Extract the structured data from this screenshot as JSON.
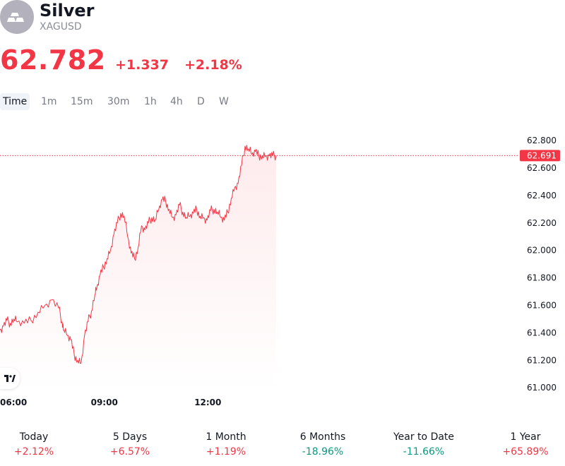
{
  "header": {
    "title": "Silver",
    "symbol": "XAGUSD"
  },
  "quote": {
    "price": "62.782",
    "change": "+1.337",
    "change_pct": "+2.18%"
  },
  "intervals": [
    "Time",
    "1m",
    "15m",
    "30m",
    "1h",
    "4h",
    "D",
    "W"
  ],
  "active_interval": "Time",
  "colors": {
    "up": "#f23645",
    "down": "#089981",
    "text": "#131722",
    "muted": "#787b86"
  },
  "chart_data": {
    "type": "area",
    "y_axis": {
      "ticks": [
        61.0,
        61.2,
        61.4,
        61.6,
        61.8,
        62.0,
        62.2,
        62.4,
        62.6,
        62.8
      ],
      "tick_labels": [
        "61.000",
        "61.200",
        "61.400",
        "61.600",
        "61.800",
        "62.000",
        "62.200",
        "62.400",
        "62.600",
        "62.800"
      ],
      "ylim": [
        60.97,
        62.95
      ]
    },
    "x_axis": {
      "tick_labels": [
        "06:00",
        "09:00",
        "12:00"
      ],
      "tick_times": [
        6.0,
        9.0,
        12.0
      ],
      "xlim": [
        6.0,
        21.0
      ]
    },
    "last_price_label": "62.691",
    "last_price": 62.691,
    "series": [
      {
        "color": "#f23645",
        "x": [
          6.0,
          6.1,
          6.2,
          6.3,
          6.4,
          6.5,
          6.7,
          6.9,
          7.1,
          7.3,
          7.5,
          7.7,
          7.8,
          7.85,
          7.95,
          8.05,
          8.15,
          8.25,
          8.35,
          8.45,
          8.55,
          8.65,
          8.75,
          8.8,
          8.9,
          9.0,
          9.1,
          9.2,
          9.3,
          9.4,
          9.5,
          9.6,
          9.7,
          9.8,
          9.9,
          10.0,
          10.1,
          10.2,
          10.3,
          10.4,
          10.5,
          10.6,
          10.7,
          10.8,
          10.9,
          11.0,
          11.1,
          11.2,
          11.3,
          11.4,
          11.5,
          11.6,
          11.7,
          11.8,
          11.9,
          12.0,
          12.1,
          12.2,
          12.3,
          12.4,
          12.5,
          12.6,
          12.7,
          12.8,
          12.9,
          13.0,
          13.1,
          13.2,
          13.3,
          13.4,
          13.5,
          13.6,
          13.7,
          13.8,
          13.9,
          14.0
        ],
        "values": [
          61.42,
          61.45,
          61.49,
          61.47,
          61.5,
          61.48,
          61.47,
          61.49,
          61.55,
          61.6,
          61.64,
          61.58,
          61.48,
          61.42,
          61.38,
          61.35,
          61.24,
          61.2,
          61.18,
          61.38,
          61.48,
          61.56,
          61.68,
          61.72,
          61.82,
          61.88,
          61.94,
          62.0,
          62.12,
          62.2,
          62.27,
          62.25,
          62.1,
          61.98,
          61.94,
          62.02,
          62.18,
          62.15,
          62.2,
          62.24,
          62.22,
          62.3,
          62.37,
          62.36,
          62.3,
          62.24,
          62.26,
          62.33,
          62.28,
          62.24,
          62.25,
          62.27,
          62.3,
          62.25,
          62.24,
          62.22,
          62.29,
          62.3,
          62.28,
          62.24,
          62.22,
          62.28,
          62.38,
          62.46,
          62.49,
          62.62,
          62.76,
          62.74,
          62.7,
          62.72,
          62.69,
          62.69,
          62.69,
          62.69,
          62.69,
          62.691
        ]
      }
    ]
  },
  "ranges": [
    {
      "label": "Today",
      "value": "+2.12%",
      "direction": "up"
    },
    {
      "label": "5 Days",
      "value": "+6.57%",
      "direction": "up"
    },
    {
      "label": "1 Month",
      "value": "+1.19%",
      "direction": "up"
    },
    {
      "label": "6 Months",
      "value": "-18.96%",
      "direction": "down"
    },
    {
      "label": "Year to Date",
      "value": "-11.66%",
      "direction": "down"
    },
    {
      "label": "1 Year",
      "value": "+65.89%",
      "direction": "up"
    }
  ]
}
